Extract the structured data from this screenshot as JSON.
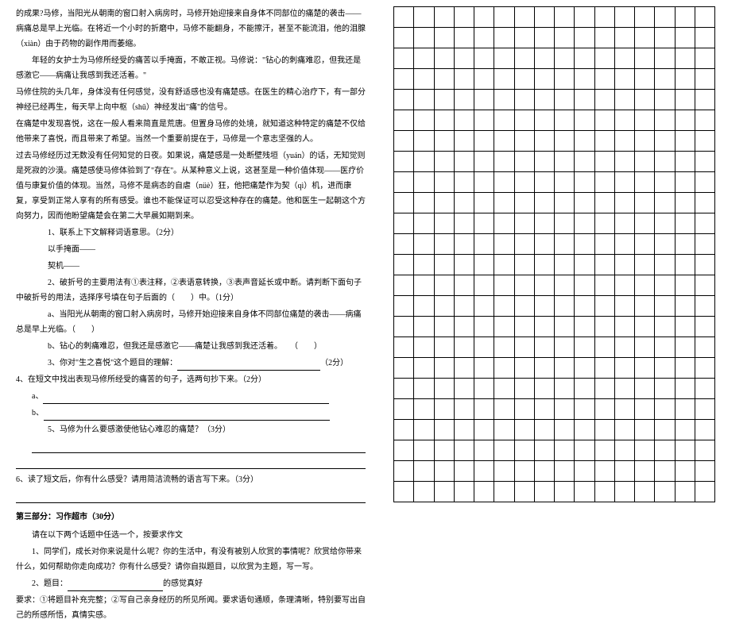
{
  "left": {
    "p1": "的成果?马修，当阳光从朝南的窗口射入病房时，马修开始迎接来自身体不同部位的痛楚的袭击——病痛总是早上光临。在将近一个小时的折磨中，马修不能翻身，不能擦汗，甚至不能流泪，他的泪腺（xiàn）由于药物的副作用而萎缩。",
    "p2": "年轻的女护士为马修所经受的痛苦以手掩面，不敢正视。马修说：\"钻心的刺痛难忍，但我还是感激它——病痛让我感到我还活着。\"",
    "p3": "马修住院的头几年，身体没有任何感觉，没有舒适感也没有痛楚感。在医生的精心治疗下，有一部分神经已经再生，每天早上向中枢（shū）神经发出\"痛\"的信号。",
    "p4": "在痛楚中发现喜悦，这在一般人看来简直是荒唐。但置身马修的处境，就知道这种特定的痛楚不仅给他带来了喜悦，而且带来了希望。当然一个重要前提在于，马修是一个意志坚强的人。",
    "p5": "过去马修经历过无数没有任何知觉的日夜。如果说，痛楚感是一处断壁残垣（yuán）的话，无知觉则是死寂的沙漠。痛楚感使马修体验到了\"存在\"。从某种意义上说，这甚至是一种价值体现——医疗价值与康复价值的体现。当然，马修不是病态的自虐（nüè）狂，他把痛楚作为契（qì）机，进而康复，享受到正常人享有的所有感受。谁也不能保证可以忍受这种存在的痛楚。他和医生一起朝这个方向努力，因而他盼望痛楚会在第二大早晨如期到来。",
    "q1": "1、联系上下文解释词语意思。（2分）",
    "q1a": "以手掩面——",
    "q1b": "契机——",
    "q2": "2、破折号的主要用法有①表注释，②表语意转换，③表声音延长或中断。请判断下面句子中破折号的用法，选择序号填在句子后面的（　　）中。（1分）",
    "q2a": "a、当阳光从朝南的窗口射入病房时，马修开始迎接来自身体不同部位痛楚的袭击——病痛总是早上光临。（　　）",
    "q2b": "b、钻心的刺痛难忍，但我还是感激它——痛楚让我感到我还活着。　　（　　）",
    "q3": "3、你对\"生之喜悦\"这个题目的理解：",
    "q3blank": "（2分）",
    "q4": "4、在短文中找出表现马修所经受的痛苦的句子，选两句抄下来。（2分）",
    "q4a": "a、",
    "q4b": "b、",
    "q5": "5、马修为什么要感激使他钻心难忍的痛楚？（3分）",
    "q6": "6、读了短文后，你有什么感受？请用简洁流畅的语言写下来。（3分）",
    "section3": "第三部分：习作超市（30分）",
    "s3intro": "请在以下两个话题中任选一个，按要求作文",
    "s3t1": "1、同学们，成长对你来说是什么呢？你的生活中，有没有被别人欣赏的事情呢？欣赏给你带来什么，如何帮助你走向成功？你有什么感受？请你自拟题目，以欣赏为主题，写一写。",
    "s3t2label": "2、题目：",
    "s3t2suffix": "的感觉真好",
    "s3req": "要求：①将题目补充完整；②写自己亲身经历的所见所闻。要求语句通顺，条理清晰，特别要写出自己的所感所悟，真情实感。",
    "grid": {
      "rows": 24,
      "cols": 16
    }
  }
}
